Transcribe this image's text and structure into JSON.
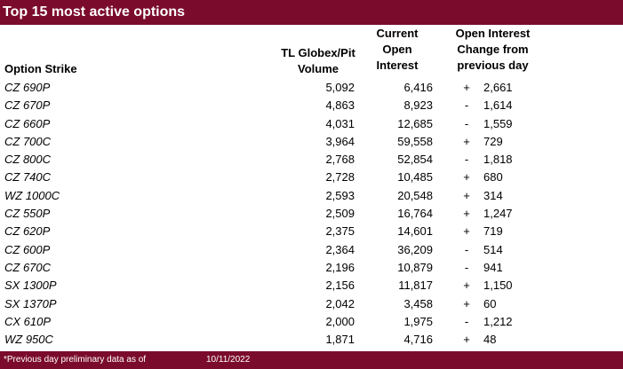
{
  "title": "Top 15 most active options",
  "headers": {
    "strike": "Option Strike",
    "volume": [
      "TL Globex/Pit",
      "Volume"
    ],
    "oi": [
      "Current",
      "Open",
      "Interest"
    ],
    "change": [
      "Open Interest",
      "Change from",
      "previous day"
    ]
  },
  "rows": [
    {
      "strike": "CZ 690P",
      "volume": "5,092",
      "oi": "6,416",
      "sign": "+",
      "change": "2,661"
    },
    {
      "strike": "CZ 670P",
      "volume": "4,863",
      "oi": "8,923",
      "sign": "-",
      "change": "1,614"
    },
    {
      "strike": "CZ 660P",
      "volume": "4,031",
      "oi": "12,685",
      "sign": "-",
      "change": "1,559"
    },
    {
      "strike": "CZ 700C",
      "volume": "3,964",
      "oi": "59,558",
      "sign": "+",
      "change": "729"
    },
    {
      "strike": "CZ 800C",
      "volume": "2,768",
      "oi": "52,854",
      "sign": "-",
      "change": "1,818"
    },
    {
      "strike": "CZ 740C",
      "volume": "2,728",
      "oi": "10,485",
      "sign": "+",
      "change": "680"
    },
    {
      "strike": "WZ 1000C",
      "volume": "2,593",
      "oi": "20,548",
      "sign": "+",
      "change": "314"
    },
    {
      "strike": "CZ 550P",
      "volume": "2,509",
      "oi": "16,764",
      "sign": "+",
      "change": "1,247"
    },
    {
      "strike": "CZ 620P",
      "volume": "2,375",
      "oi": "14,601",
      "sign": "+",
      "change": "719"
    },
    {
      "strike": "CZ 600P",
      "volume": "2,364",
      "oi": "36,209",
      "sign": "-",
      "change": "514"
    },
    {
      "strike": "CZ 670C",
      "volume": "2,196",
      "oi": "10,879",
      "sign": "-",
      "change": "941"
    },
    {
      "strike": "SX 1300P",
      "volume": "2,156",
      "oi": "11,817",
      "sign": "+",
      "change": "1,150"
    },
    {
      "strike": "SX 1370P",
      "volume": "2,042",
      "oi": "3,458",
      "sign": "+",
      "change": "60"
    },
    {
      "strike": "CX 610P",
      "volume": "2,000",
      "oi": "1,975",
      "sign": "-",
      "change": "1,212"
    },
    {
      "strike": "WZ 950C",
      "volume": "1,871",
      "oi": "4,716",
      "sign": "+",
      "change": "48"
    }
  ],
  "footer": {
    "note": "*Previous day preliminary data as of",
    "date": "10/11/2022"
  },
  "colors": {
    "accent": "#7b0b2c"
  }
}
